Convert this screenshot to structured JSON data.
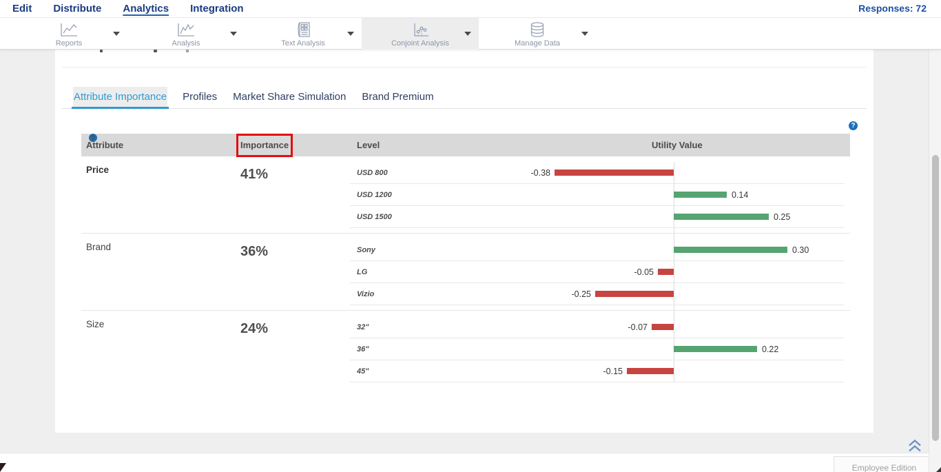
{
  "menubar": {
    "items": [
      {
        "label": "Edit",
        "active": false
      },
      {
        "label": "Distribute",
        "active": false
      },
      {
        "label": "Analytics",
        "active": true
      },
      {
        "label": "Integration",
        "active": false
      }
    ],
    "responses_label": "Responses: 72"
  },
  "toolbar": {
    "items": [
      {
        "label": "Reports",
        "icon": "line-chart-icon",
        "active": false
      },
      {
        "label": "Analysis",
        "icon": "trend-chart-icon",
        "active": false
      },
      {
        "label": "Text Analysis",
        "icon": "text-document-icon",
        "active": false
      },
      {
        "label": "Conjoint Analysis",
        "icon": "conjoint-chart-icon",
        "active": true
      },
      {
        "label": "Manage Data",
        "icon": "database-icon",
        "active": false
      }
    ]
  },
  "tabs": [
    {
      "label": "Attribute Importance",
      "active": true
    },
    {
      "label": "Profiles",
      "active": false
    },
    {
      "label": "Market Share Simulation",
      "active": false
    },
    {
      "label": "Brand Premium",
      "active": false
    }
  ],
  "icons": {
    "help_glyph": "?"
  },
  "table": {
    "headers": {
      "attribute": "Attribute",
      "importance": "Importance",
      "level": "Level",
      "utility": "Utility Value"
    },
    "annotation_color": "#e10f0f",
    "colors": {
      "positive": "#55a471",
      "negative": "#c74440"
    },
    "rows": [
      {
        "attribute": "Price",
        "importance": "41%",
        "levels": [
          {
            "name": "USD 800",
            "value": -0.38,
            "label": "-0.38"
          },
          {
            "name": "USD 1200",
            "value": 0.14,
            "label": "0.14"
          },
          {
            "name": "USD 1500",
            "value": 0.25,
            "label": "0.25"
          }
        ]
      },
      {
        "attribute": "Brand",
        "importance": "36%",
        "levels": [
          {
            "name": "Sony",
            "value": 0.3,
            "label": "0.30"
          },
          {
            "name": "LG",
            "value": -0.05,
            "label": "-0.05"
          },
          {
            "name": "Vizio",
            "value": -0.25,
            "label": "-0.25"
          }
        ]
      },
      {
        "attribute": "Size",
        "importance": "24%",
        "levels": [
          {
            "name": "32\"",
            "value": -0.07,
            "label": "-0.07"
          },
          {
            "name": "36\"",
            "value": 0.22,
            "label": "0.22"
          },
          {
            "name": "45\"",
            "value": -0.15,
            "label": "-0.15"
          }
        ]
      }
    ]
  },
  "footer": {
    "edition_label": "Employee Edition"
  }
}
